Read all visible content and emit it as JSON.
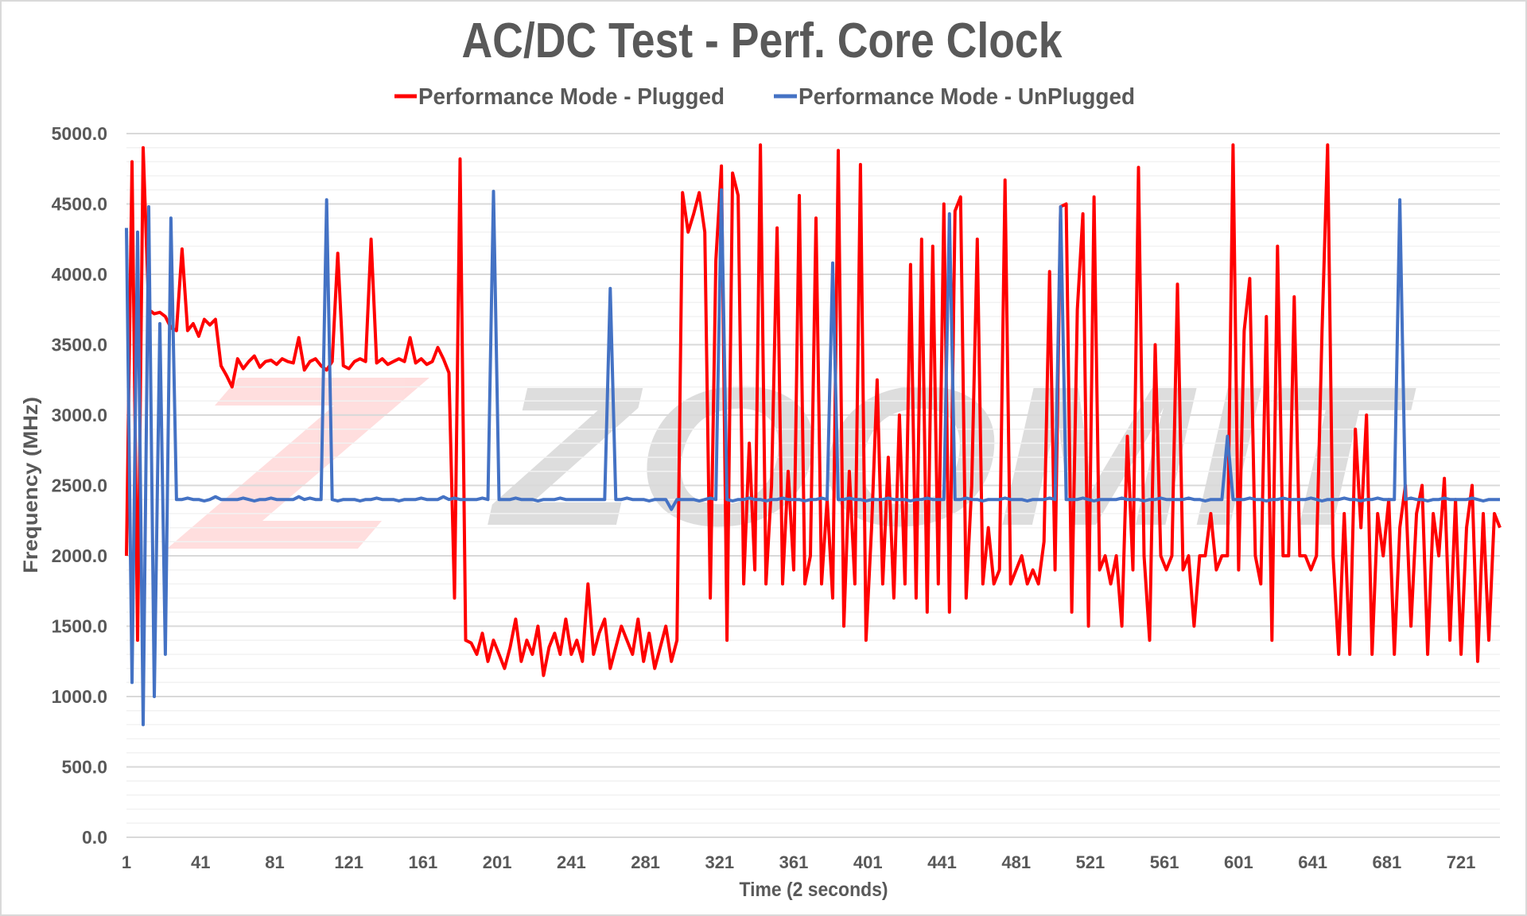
{
  "chart_data": {
    "type": "line",
    "title": "AC/DC Test - Perf. Core Clock",
    "xlabel": "Time (2 seconds)",
    "ylabel": "Frequency (MHz)",
    "ylim": [
      0,
      5000
    ],
    "xlim": [
      1,
      742
    ],
    "grid": true,
    "legend_position": "top-center",
    "y_ticks": [
      "0.0",
      "500.0",
      "1000.0",
      "1500.0",
      "2000.0",
      "2500.0",
      "3000.0",
      "3500.0",
      "4000.0",
      "4500.0",
      "5000.0"
    ],
    "y_tick_values": [
      0,
      500,
      1000,
      1500,
      2000,
      2500,
      3000,
      3500,
      4000,
      4500,
      5000
    ],
    "x_ticks": [
      "1",
      "41",
      "81",
      "121",
      "161",
      "201",
      "241",
      "281",
      "321",
      "361",
      "401",
      "441",
      "481",
      "521",
      "561",
      "601",
      "641",
      "681",
      "721"
    ],
    "x_tick_values": [
      1,
      41,
      81,
      121,
      161,
      201,
      241,
      281,
      321,
      361,
      401,
      441,
      481,
      521,
      561,
      601,
      641,
      681,
      721
    ],
    "x_start": 1,
    "x_step": 3,
    "series": [
      {
        "name": "Performance Mode - Plugged",
        "color": "#ff0000",
        "values": [
          2000,
          4800,
          1400,
          4900,
          3750,
          3720,
          3730,
          3700,
          3620,
          3600,
          4180,
          3600,
          3650,
          3560,
          3680,
          3640,
          3680,
          3350,
          3280,
          3200,
          3400,
          3330,
          3380,
          3420,
          3340,
          3380,
          3390,
          3360,
          3400,
          3380,
          3370,
          3550,
          3320,
          3380,
          3400,
          3350,
          3320,
          3380,
          4150,
          3350,
          3330,
          3380,
          3400,
          3380,
          4250,
          3370,
          3400,
          3360,
          3380,
          3400,
          3380,
          3550,
          3370,
          3400,
          3360,
          3380,
          3480,
          3400,
          3300,
          1700,
          4820,
          1400,
          1380,
          1300,
          1450,
          1250,
          1400,
          1300,
          1200,
          1350,
          1550,
          1250,
          1400,
          1300,
          1500,
          1150,
          1350,
          1450,
          1300,
          1550,
          1300,
          1400,
          1250,
          1800,
          1300,
          1450,
          1550,
          1200,
          1350,
          1500,
          1400,
          1300,
          1550,
          1250,
          1450,
          1200,
          1350,
          1500,
          1250,
          1400,
          4580,
          4300,
          4430,
          4580,
          4300,
          1700,
          4100,
          4770,
          1400,
          4720,
          4560,
          1800,
          2800,
          1900,
          4920,
          1800,
          2500,
          4330,
          1800,
          2600,
          1900,
          4560,
          1800,
          2000,
          4400,
          1800,
          2400,
          1700,
          4880,
          1500,
          2600,
          1800,
          4780,
          1400,
          2200,
          3250,
          1800,
          2700,
          1700,
          3000,
          1800,
          4070,
          1700,
          4250,
          1600,
          4200,
          1800,
          4500,
          1600,
          4450,
          4550,
          1700,
          2500,
          4250,
          1800,
          2200,
          1800,
          1900,
          4670,
          1800,
          1900,
          2000,
          1800,
          1900,
          1800,
          2100,
          4020,
          1900,
          4480,
          4500,
          1600,
          3750,
          4430,
          1500,
          4550,
          1900,
          2000,
          1800,
          2000,
          1500,
          2850,
          1900,
          4760,
          2000,
          1400,
          3500,
          2000,
          1900,
          2000,
          3930,
          1900,
          2000,
          1500,
          2000,
          2000,
          2300,
          1900,
          2000,
          2000,
          4920,
          1900,
          3600,
          3970,
          2000,
          1800,
          3700,
          1400,
          4200,
          2000,
          2000,
          3840,
          2000,
          2000,
          1900,
          2000,
          3600,
          4920,
          2000,
          1300,
          2300,
          1300,
          2900,
          2200,
          3000,
          1300,
          2300,
          2000,
          2400,
          1300,
          2200,
          2500,
          1500,
          2300,
          2500,
          1300,
          2300,
          2000,
          2550,
          1400,
          2400,
          1300,
          2200,
          2500,
          1250,
          2300,
          1400,
          2300,
          2200
        ]
      },
      {
        "name": "Performance Mode - UnPlugged",
        "color": "#4472c4",
        "values": [
          4330,
          1100,
          4300,
          800,
          4480,
          1000,
          3650,
          1300,
          4400,
          2400,
          2400,
          2410,
          2400,
          2400,
          2390,
          2400,
          2420,
          2400,
          2400,
          2400,
          2400,
          2410,
          2400,
          2390,
          2400,
          2400,
          2410,
          2400,
          2400,
          2400,
          2400,
          2420,
          2400,
          2410,
          2400,
          2400,
          4530,
          2400,
          2390,
          2400,
          2400,
          2400,
          2390,
          2400,
          2400,
          2410,
          2400,
          2400,
          2400,
          2390,
          2400,
          2400,
          2400,
          2410,
          2400,
          2400,
          2400,
          2420,
          2400,
          2410,
          2400,
          2400,
          2400,
          2400,
          2410,
          2400,
          4590,
          2400,
          2400,
          2400,
          2410,
          2400,
          2400,
          2400,
          2390,
          2400,
          2400,
          2400,
          2410,
          2400,
          2400,
          2400,
          2400,
          2400,
          2400,
          2400,
          2400,
          3900,
          2400,
          2400,
          2410,
          2400,
          2400,
          2400,
          2390,
          2400,
          2400,
          2400,
          2330,
          2400,
          2400,
          2400,
          2400,
          2390,
          2400,
          2410,
          2400,
          4600,
          2400,
          2390,
          2400,
          2400,
          2410,
          2400,
          2400,
          2390,
          2400,
          2400,
          2410,
          2400,
          2400,
          2400,
          2390,
          2400,
          2400,
          2410,
          2400,
          4080,
          2400,
          2400,
          2410,
          2400,
          2400,
          2390,
          2400,
          2400,
          2400,
          2410,
          2400,
          2400,
          2400,
          2390,
          2400,
          2400,
          2410,
          2400,
          2400,
          2400,
          4430,
          2400,
          2400,
          2410,
          2400,
          2400,
          2390,
          2400,
          2400,
          2400,
          2410,
          2400,
          2400,
          2400,
          2390,
          2400,
          2400,
          2400,
          2410,
          2400,
          4480,
          2400,
          2400,
          2400,
          2410,
          2400,
          2390,
          2400,
          2400,
          2400,
          2400,
          2410,
          2400,
          2400,
          2400,
          2390,
          2400,
          2400,
          2410,
          2400,
          2400,
          2400,
          2400,
          2410,
          2400,
          2400,
          2390,
          2400,
          2400,
          2400,
          2850,
          2400,
          2400,
          2400,
          2410,
          2400,
          2400,
          2390,
          2400,
          2400,
          2410,
          2400,
          2400,
          2400,
          2400,
          2410,
          2400,
          2390,
          2400,
          2400,
          2400,
          2410,
          2400,
          2400,
          2390,
          2400,
          2400,
          2410,
          2400,
          2400,
          2400,
          4530,
          2400,
          2410,
          2400,
          2400,
          2390,
          2400,
          2400,
          2410,
          2400,
          2400,
          2400,
          2400,
          2410,
          2400,
          2390,
          2400,
          2400,
          2400
        ]
      }
    ],
    "watermark": "ZOOMIT"
  }
}
